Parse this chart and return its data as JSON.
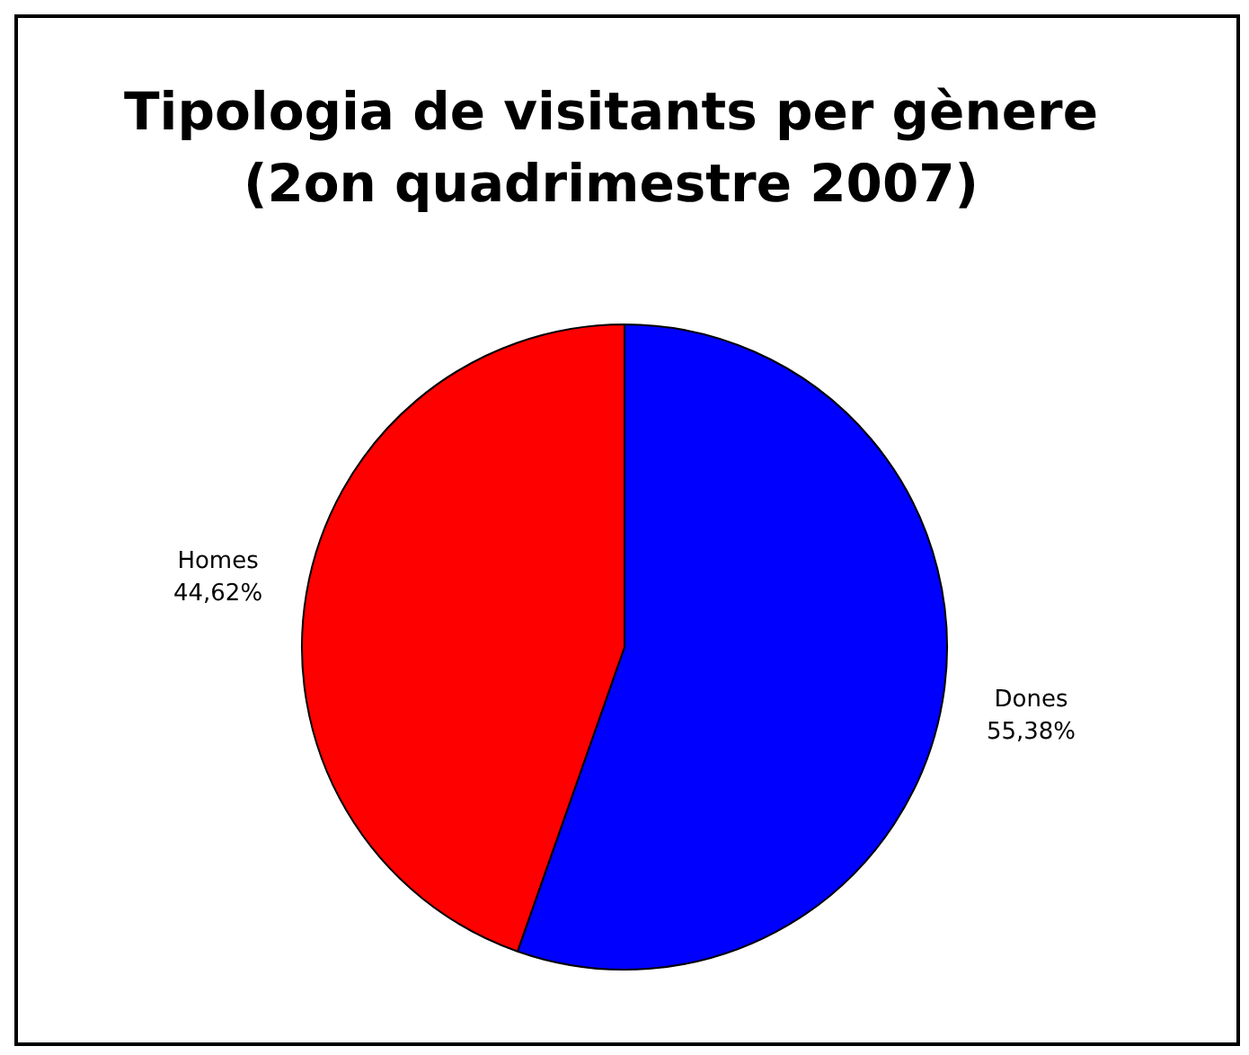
{
  "chart_data": {
    "type": "pie",
    "title": "Tipologia de visitants per gènere (2on quadrimestre 2007)",
    "categories": [
      "Dones",
      "Homes"
    ],
    "values": [
      55.38,
      44.62
    ],
    "colors": [
      "#0000ff",
      "#ff0000"
    ],
    "value_labels": [
      "55,38%",
      "44,62%"
    ],
    "legend": false
  }
}
